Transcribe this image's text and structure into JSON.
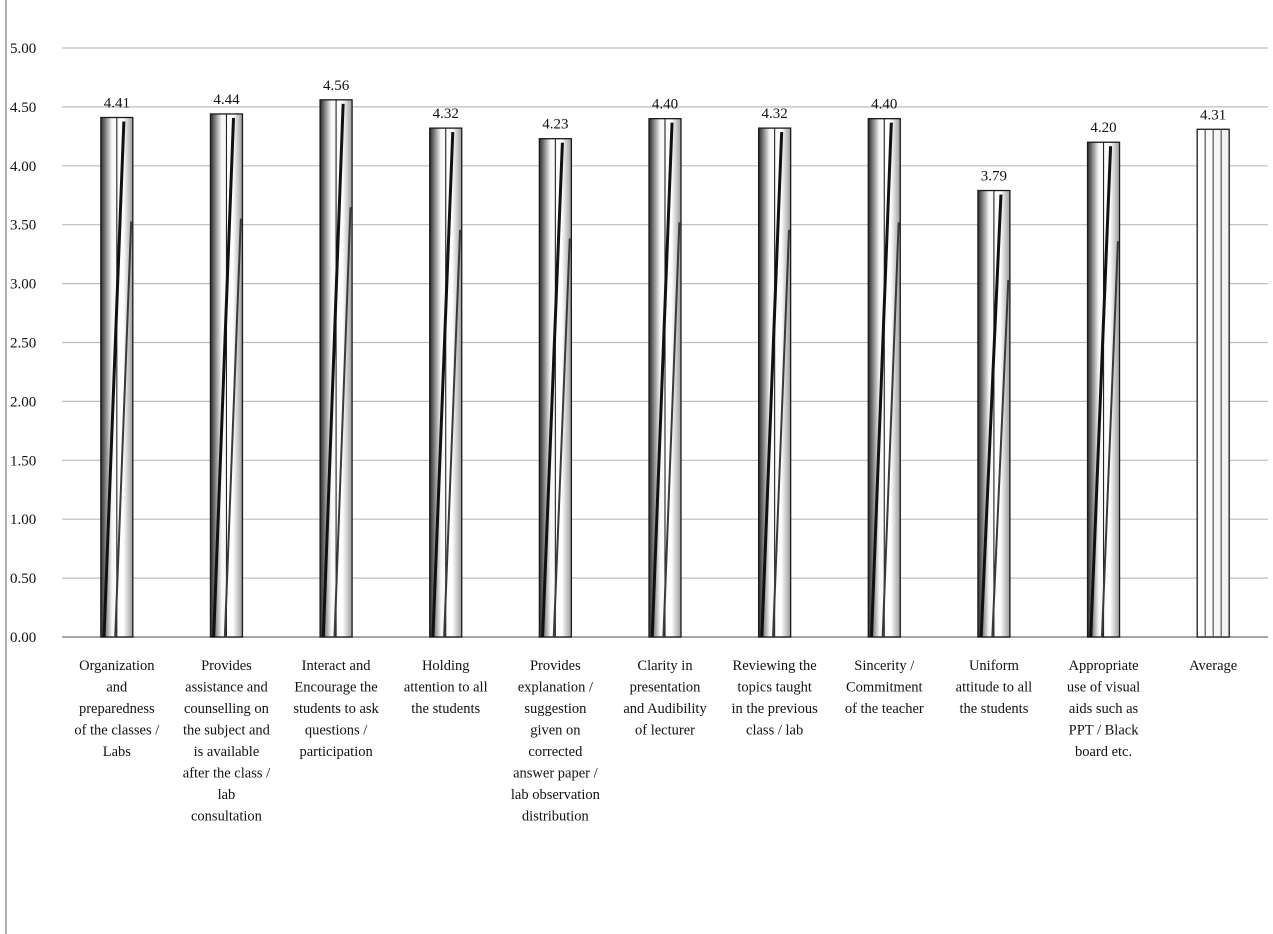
{
  "chart_data": {
    "type": "bar",
    "title": "",
    "xlabel": "",
    "ylabel": "",
    "ylim": [
      0,
      5
    ],
    "yticks": [
      "0.00",
      "0.50",
      "1.00",
      "1.50",
      "2.00",
      "2.50",
      "3.00",
      "3.50",
      "4.00",
      "4.50",
      "5.00"
    ],
    "grid": true,
    "legend": "none",
    "categories": [
      [
        "Organization",
        "and",
        "preparedness",
        "of the classes /",
        "Labs"
      ],
      [
        "Provides",
        "assistance and",
        "counselling on",
        "the subject and",
        "is available",
        "after the class /",
        "lab",
        "consultation"
      ],
      [
        "Interact and",
        "Encourage the",
        "students to ask",
        "questions /",
        "participation"
      ],
      [
        "Holding",
        "attention to all",
        "the students"
      ],
      [
        "Provides",
        "explanation /",
        "suggestion",
        "given on",
        "corrected",
        "answer paper /",
        "lab observation",
        "distribution"
      ],
      [
        "Clarity in",
        "presentation",
        "and Audibility",
        "of lecturer"
      ],
      [
        "Reviewing the",
        "topics taught",
        "in the previous",
        "class / lab"
      ],
      [
        "Sincerity /",
        "Commitment",
        "of the teacher"
      ],
      [
        "Uniform",
        "attitude to all",
        "the students"
      ],
      [
        "Appropriate",
        "use of visual",
        "aids such as",
        "PPT / Black",
        "board etc."
      ],
      [
        "Average"
      ]
    ],
    "values": [
      4.41,
      4.44,
      4.56,
      4.32,
      4.23,
      4.4,
      4.32,
      4.4,
      3.79,
      4.2,
      4.31
    ],
    "data_labels": [
      "4.41",
      "4.44",
      "4.56",
      "4.32",
      "4.23",
      "4.40",
      "4.32",
      "4.40",
      "3.79",
      "4.20",
      "4.31"
    ],
    "colors": {
      "bar_fill": "#f2f2f2",
      "bar_stroke": "#1a1a1a",
      "bar_dark": "#111111",
      "gridline": "#bdbdbd",
      "text": "#111111"
    }
  }
}
